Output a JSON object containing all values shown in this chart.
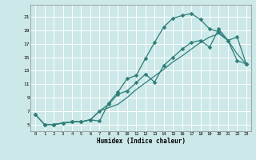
{
  "xlabel": "Humidex (Indice chaleur)",
  "bg_color": "#cce8e8",
  "grid_color": "#ffffff",
  "line_color": "#2d7d78",
  "xlim": [
    -0.5,
    23.5
  ],
  "ylim": [
    4.0,
    22.8
  ],
  "xticks": [
    0,
    1,
    2,
    3,
    4,
    5,
    6,
    7,
    8,
    9,
    10,
    11,
    12,
    13,
    14,
    15,
    16,
    17,
    18,
    19,
    20,
    21,
    22,
    23
  ],
  "yticks": [
    5,
    7,
    9,
    11,
    13,
    15,
    17,
    19,
    21
  ],
  "upper_x": [
    0,
    1,
    2,
    3,
    4,
    5,
    6,
    7,
    8,
    9,
    10,
    11,
    12,
    13,
    14,
    15,
    16,
    17,
    18,
    19,
    20,
    21,
    22,
    23
  ],
  "upper_y": [
    6.5,
    5.0,
    5.0,
    5.2,
    5.4,
    5.4,
    5.7,
    5.5,
    8.2,
    9.8,
    11.8,
    12.3,
    14.8,
    17.2,
    19.5,
    20.8,
    21.2,
    21.5,
    20.6,
    19.2,
    18.8,
    17.5,
    14.5,
    14.0
  ],
  "lower_x": [
    0,
    1,
    2,
    3,
    4,
    5,
    6,
    7,
    8,
    9,
    10,
    11,
    12,
    13,
    14,
    15,
    16,
    17,
    18,
    19,
    20,
    21,
    22,
    23
  ],
  "lower_y": [
    6.5,
    5.0,
    5.0,
    5.2,
    5.4,
    5.4,
    5.7,
    7.0,
    8.0,
    9.5,
    10.0,
    11.2,
    12.5,
    11.3,
    13.8,
    15.0,
    16.2,
    17.2,
    17.5,
    16.5,
    19.2,
    17.5,
    18.0,
    14.0
  ],
  "diag_x": [
    1,
    2,
    3,
    4,
    5,
    6,
    7,
    8,
    9,
    10,
    11,
    12,
    13,
    14,
    15,
    16,
    17,
    18,
    19,
    20,
    21,
    22,
    23
  ],
  "diag_y": [
    5.0,
    5.0,
    5.2,
    5.4,
    5.4,
    5.7,
    7.0,
    7.5,
    8.0,
    9.0,
    10.2,
    11.2,
    12.2,
    13.2,
    14.3,
    15.2,
    16.2,
    17.2,
    18.0,
    18.5,
    17.5,
    15.5,
    14.0
  ]
}
